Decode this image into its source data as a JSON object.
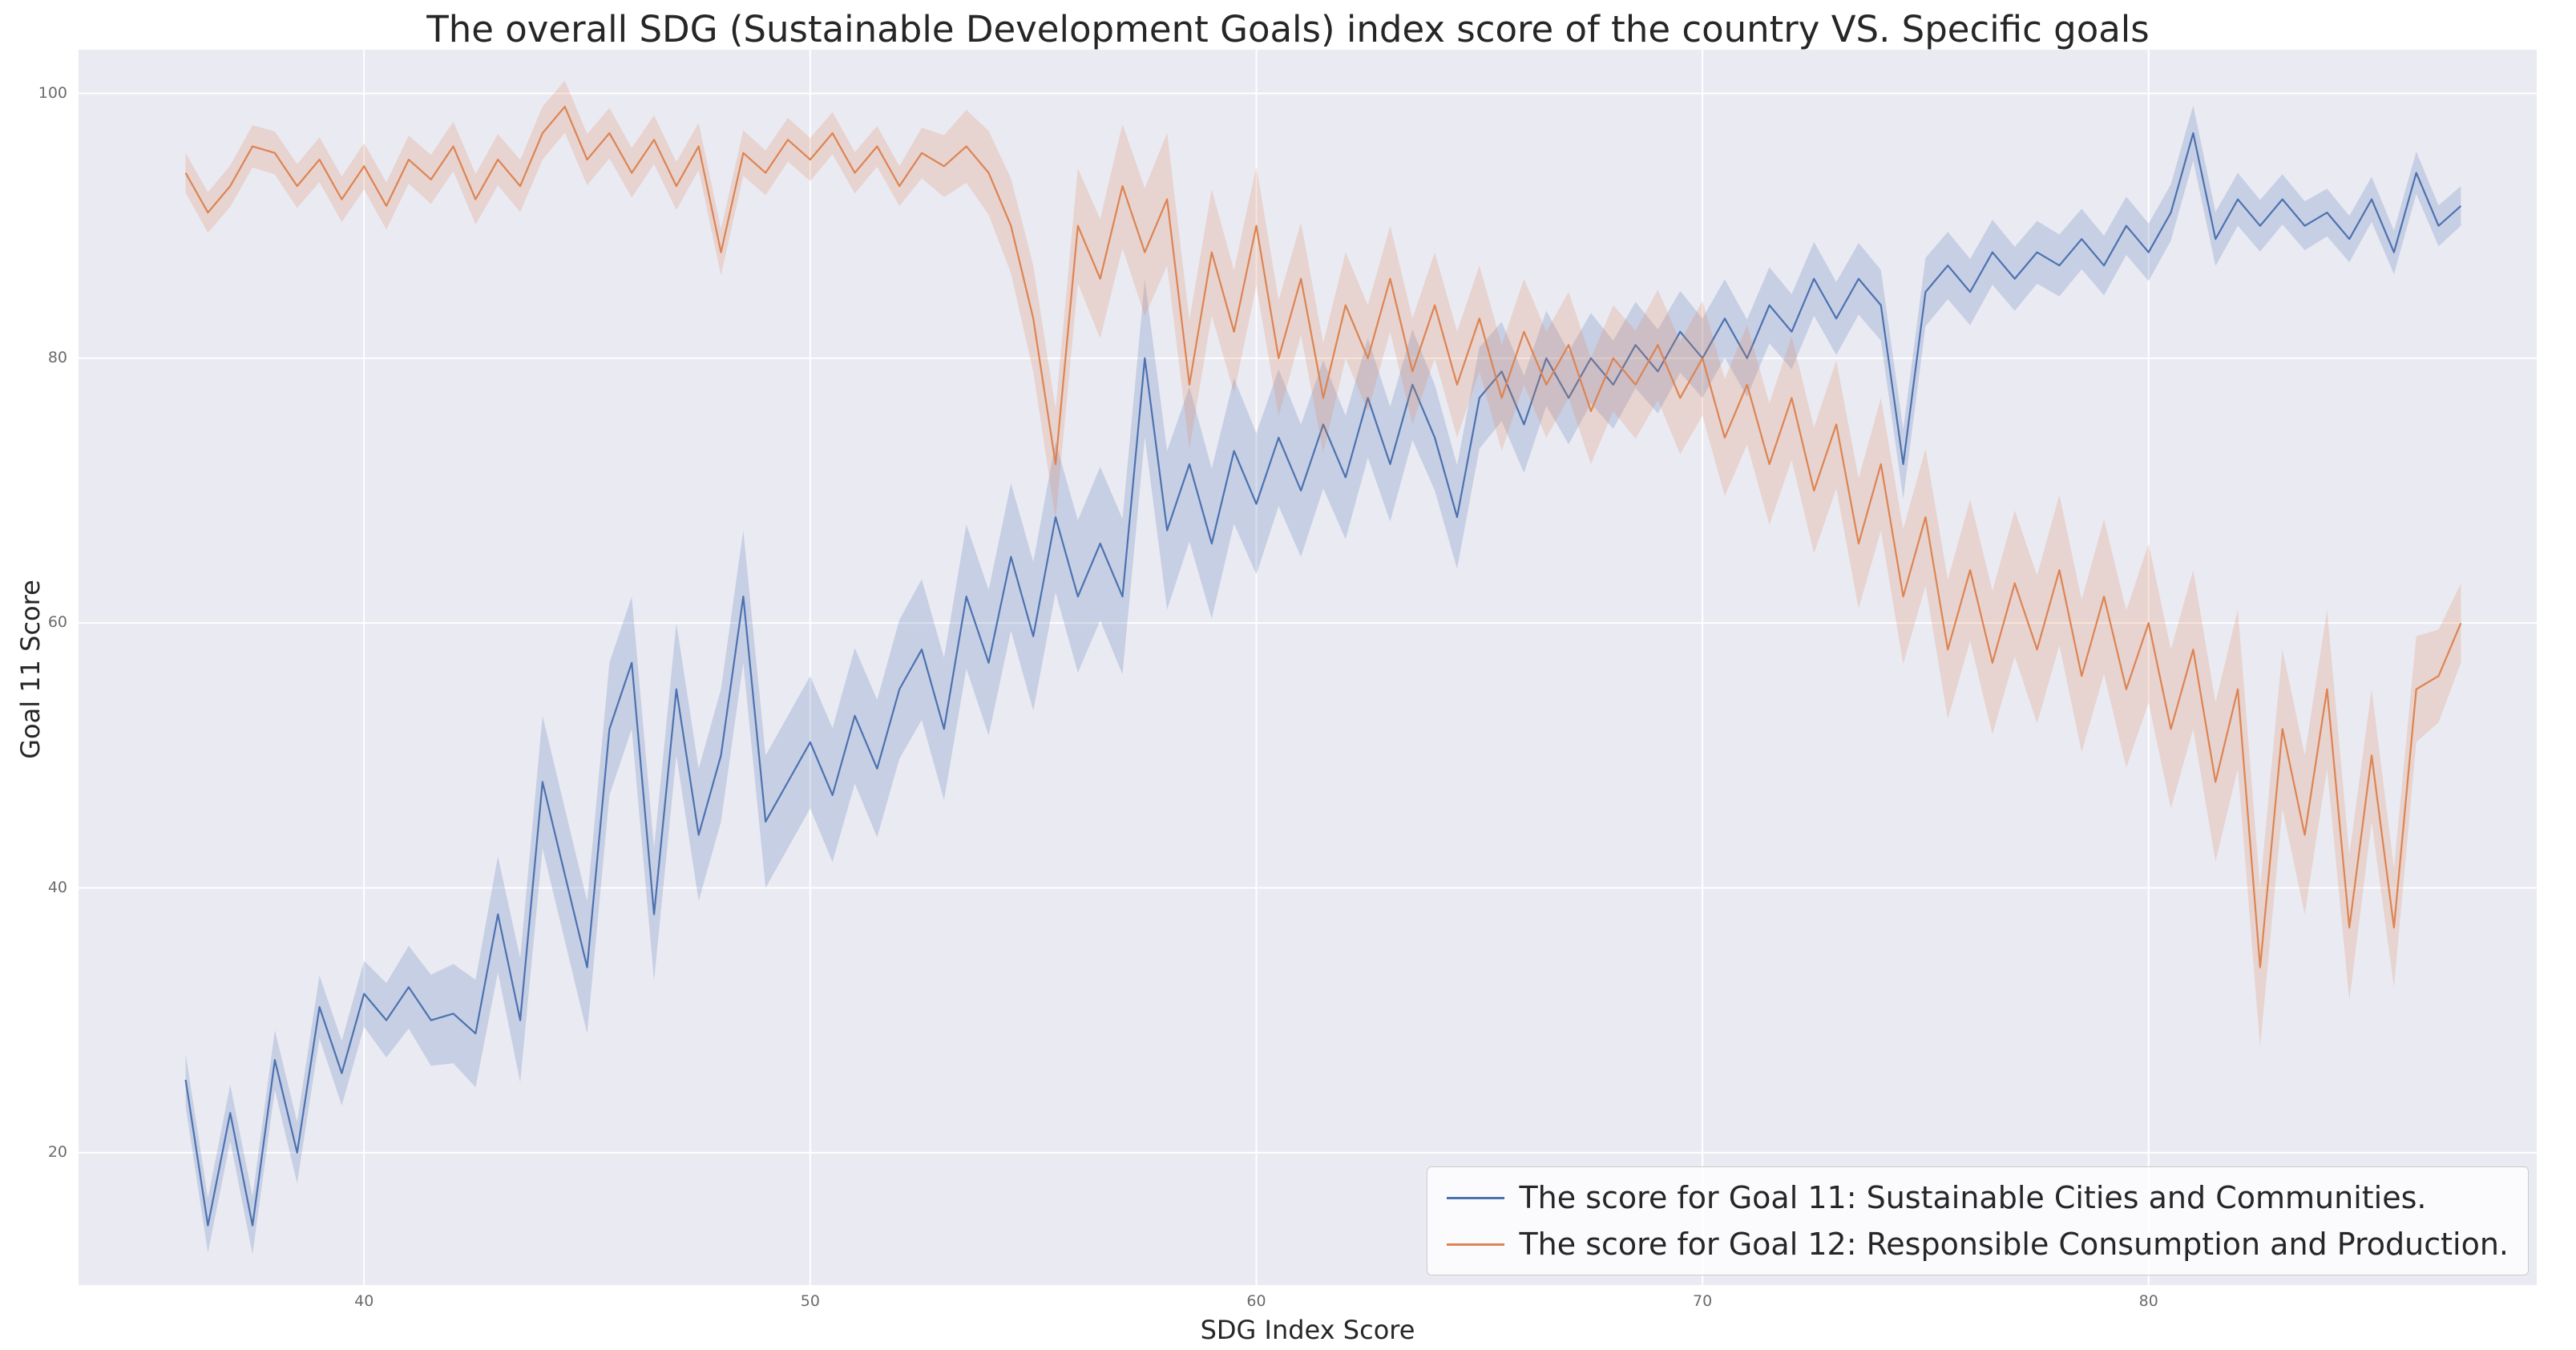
{
  "colors": {
    "plot_background": "#eaeaf2",
    "grid": "#ffffff",
    "goal11_line": "#4c72b0",
    "goal12_line": "#dd8452",
    "text": "#262626",
    "tick_text": "#6b6b6b"
  },
  "chart_data": {
    "type": "line",
    "title": "The overall SDG (Sustainable Development Goals) index score of the country VS. Specific goals",
    "xlabel": "SDG Index Score",
    "ylabel": "Goal 11 Score",
    "xlim": [
      33.6,
      88.7
    ],
    "ylim": [
      10,
      103.3
    ],
    "x_ticks": [
      40,
      50,
      60,
      70,
      80
    ],
    "y_ticks": [
      20,
      40,
      60,
      80,
      100
    ],
    "grid": true,
    "legend_position": "lower right",
    "series": [
      {
        "name": "The score for Goal 11: Sustainable Cities and Communities.",
        "color": "#4c72b0",
        "x": {
          "start": 36,
          "step": 0.5,
          "count": 103
        },
        "y": [
          25.5,
          14.5,
          23,
          14.5,
          27,
          20,
          31,
          26,
          32,
          30,
          32.5,
          30,
          30.5,
          29,
          38,
          30,
          48,
          41,
          34,
          52,
          57,
          38,
          55,
          44,
          50,
          62,
          45,
          48,
          51,
          47,
          53,
          49,
          55,
          58,
          52,
          62,
          57,
          65,
          59,
          68,
          62,
          66,
          62,
          80,
          67,
          72,
          66,
          73,
          69,
          74,
          70,
          75,
          71,
          77,
          72,
          78,
          74,
          68,
          77,
          79,
          75,
          80,
          77,
          80,
          78,
          81,
          79,
          82,
          80,
          83,
          80,
          84,
          82,
          86,
          83,
          86,
          84,
          72,
          85,
          87,
          85,
          88,
          86,
          88,
          87,
          89,
          87,
          90,
          88,
          91,
          97,
          89,
          92,
          90,
          92,
          90,
          91,
          89,
          92,
          88,
          94,
          90,
          91.5
        ],
        "band_halfwidth_points": [
          [
            36,
            2
          ],
          [
            40,
            2.5
          ],
          [
            44,
            5
          ],
          [
            50,
            5
          ],
          [
            58,
            6
          ],
          [
            64,
            4
          ],
          [
            70,
            3
          ],
          [
            76,
            2.5
          ],
          [
            82,
            2
          ],
          [
            87,
            1.5
          ]
        ]
      },
      {
        "name": "The score for Goal 12: Responsible Consumption and Production.",
        "color": "#dd8452",
        "x": {
          "start": 36,
          "step": 0.5,
          "count": 103
        },
        "y": [
          94,
          91,
          93,
          96,
          95.5,
          93,
          95,
          92,
          94.5,
          91.5,
          95,
          93.5,
          96,
          92,
          95,
          93,
          97,
          99,
          95,
          97,
          94,
          96.5,
          93,
          96,
          88,
          95.5,
          94,
          96.5,
          95,
          97,
          94,
          96,
          93,
          95.5,
          94.5,
          96,
          94,
          90,
          83,
          72,
          90,
          86,
          93,
          88,
          92,
          78,
          88,
          82,
          90,
          80,
          86,
          77,
          84,
          80,
          86,
          79,
          84,
          78,
          83,
          77,
          82,
          78,
          81,
          76,
          80,
          78,
          81,
          77,
          80,
          74,
          78,
          72,
          77,
          70,
          75,
          66,
          72,
          62,
          68,
          58,
          64,
          57,
          63,
          58,
          64,
          56,
          62,
          55,
          60,
          52,
          58,
          48,
          55,
          34,
          52,
          44,
          55,
          37,
          50,
          37,
          55,
          56,
          60
        ],
        "band_halfwidth_points": [
          [
            36,
            1.5
          ],
          [
            44,
            2
          ],
          [
            52,
            1.5
          ],
          [
            55,
            4
          ],
          [
            58,
            5
          ],
          [
            62,
            4
          ],
          [
            68,
            4
          ],
          [
            74,
            5
          ],
          [
            80,
            6
          ],
          [
            84,
            6
          ],
          [
            87,
            3
          ]
        ]
      }
    ]
  }
}
